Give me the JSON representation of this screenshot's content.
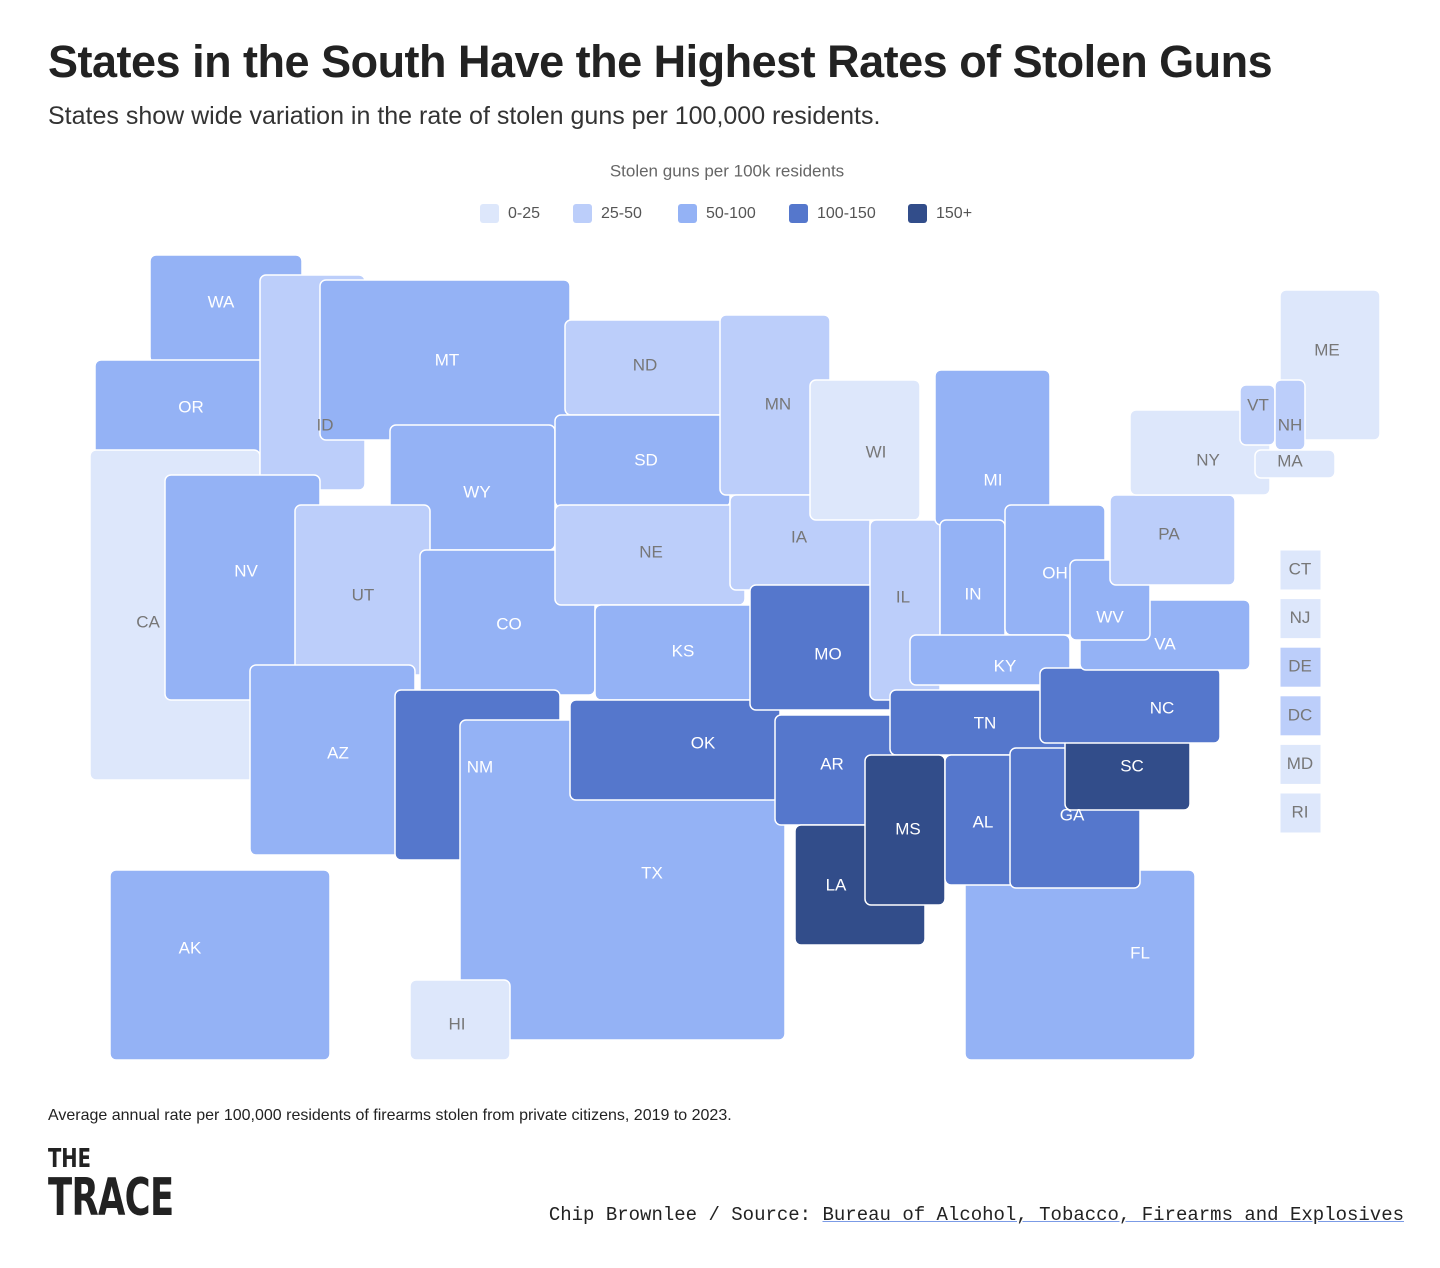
{
  "chart_data": {
    "type": "choropleth",
    "title": "States in the South Have the Highest Rates of Stolen Guns",
    "subtitle": "States show wide variation in the rate of stolen guns per 100,000 residents.",
    "legend_title": "Stolen guns per 100k residents",
    "legend": [
      {
        "label": "0-25",
        "color": "#dde7fb"
      },
      {
        "label": "25-50",
        "color": "#bccefa"
      },
      {
        "label": "50-100",
        "color": "#94b2f5"
      },
      {
        "label": "100-150",
        "color": "#5577cc"
      },
      {
        "label": "150+",
        "color": "#324d8a"
      }
    ],
    "states": [
      {
        "label": "WA",
        "class": 2
      },
      {
        "label": "OR",
        "class": 2
      },
      {
        "label": "CA",
        "class": 0
      },
      {
        "label": "ID",
        "class": 1
      },
      {
        "label": "NV",
        "class": 2
      },
      {
        "label": "MT",
        "class": 2
      },
      {
        "label": "WY",
        "class": 2
      },
      {
        "label": "UT",
        "class": 1
      },
      {
        "label": "AZ",
        "class": 2
      },
      {
        "label": "CO",
        "class": 2
      },
      {
        "label": "NM",
        "class": 3
      },
      {
        "label": "ND",
        "class": 1
      },
      {
        "label": "SD",
        "class": 2
      },
      {
        "label": "NE",
        "class": 1
      },
      {
        "label": "KS",
        "class": 2
      },
      {
        "label": "TX",
        "class": 2
      },
      {
        "label": "OK",
        "class": 3
      },
      {
        "label": "MN",
        "class": 1
      },
      {
        "label": "IA",
        "class": 1
      },
      {
        "label": "MO",
        "class": 3
      },
      {
        "label": "AR",
        "class": 3
      },
      {
        "label": "LA",
        "class": 4
      },
      {
        "label": "WI",
        "class": 0
      },
      {
        "label": "IL",
        "class": 1
      },
      {
        "label": "MI",
        "class": 2
      },
      {
        "label": "IN",
        "class": 2
      },
      {
        "label": "OH",
        "class": 2
      },
      {
        "label": "FL",
        "class": 2
      },
      {
        "label": "KY",
        "class": 2
      },
      {
        "label": "TN",
        "class": 3
      },
      {
        "label": "MS",
        "class": 4
      },
      {
        "label": "AL",
        "class": 3
      },
      {
        "label": "GA",
        "class": 3
      },
      {
        "label": "SC",
        "class": 4
      },
      {
        "label": "NC",
        "class": 3
      },
      {
        "label": "VA",
        "class": 2
      },
      {
        "label": "WV",
        "class": 2
      },
      {
        "label": "PA",
        "class": 1
      },
      {
        "label": "NY",
        "class": 0
      },
      {
        "label": "ME",
        "class": 0
      },
      {
        "label": "VT",
        "class": 1
      },
      {
        "label": "NH",
        "class": 1
      },
      {
        "label": "MA",
        "class": 0
      },
      {
        "label": "AK",
        "class": 2
      },
      {
        "label": "HI",
        "class": 0
      }
    ],
    "small_states": [
      {
        "label": "CT",
        "class": 0
      },
      {
        "label": "NJ",
        "class": 0
      },
      {
        "label": "DE",
        "class": 1
      },
      {
        "label": "DC",
        "class": 1
      },
      {
        "label": "MD",
        "class": 0
      },
      {
        "label": "RI",
        "class": 0
      }
    ],
    "note": "Average annual rate per 100,000 residents of firearms stolen from private citizens, 2019 to 2023.",
    "logo_top": "THE",
    "logo_bottom": "TRACE",
    "byline": "Chip Brownlee / Source:",
    "source": "Bureau of Alcohol, Tobacco, Firearms and Explosives"
  }
}
